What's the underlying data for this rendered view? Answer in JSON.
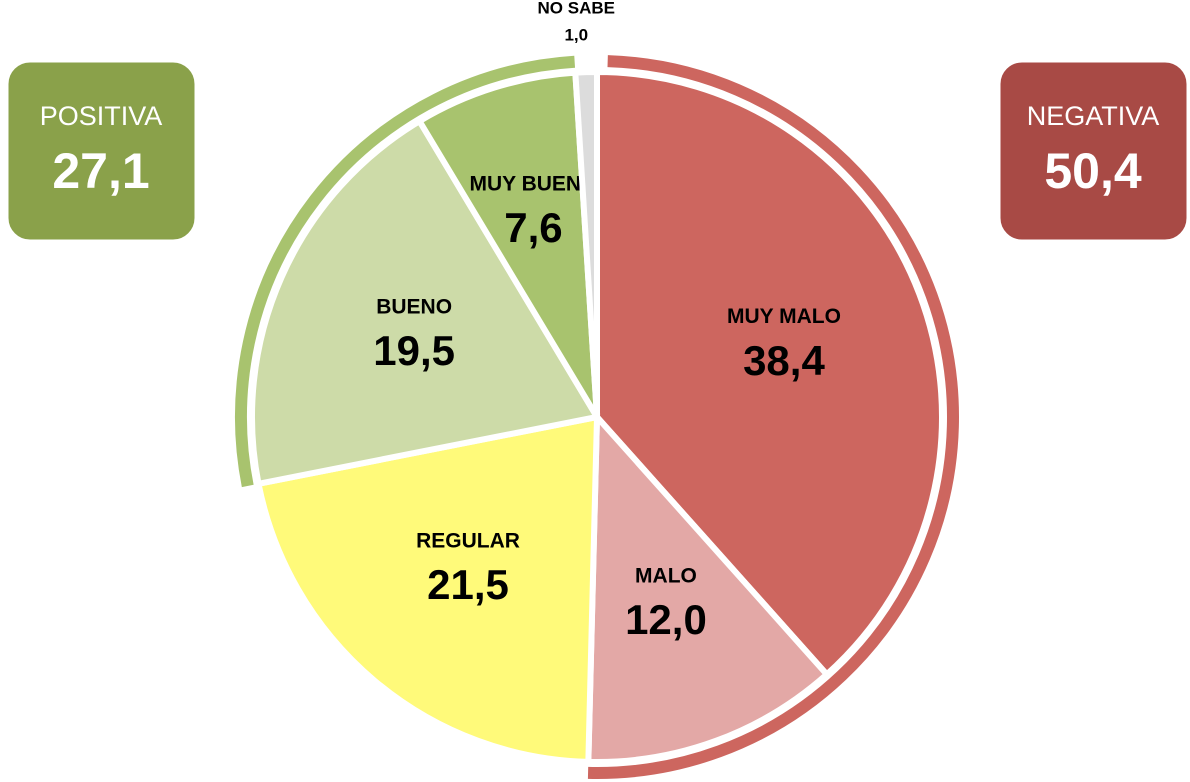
{
  "chart_data": {
    "type": "pie",
    "categories": [
      "MUY MALO",
      "MALO",
      "REGULAR",
      "BUENO",
      "MUY BUENO",
      "NO SABE"
    ],
    "values": [
      38.4,
      12.0,
      21.5,
      19.5,
      7.6,
      1.0
    ],
    "value_labels": [
      "38,4",
      "12,0",
      "21,5",
      "19,5",
      "7,6",
      "1,0"
    ],
    "colors": [
      "#cd665f",
      "#e3a8a6",
      "#fffa7a",
      "#cddba8",
      "#a8c36e",
      "#dcdcdc"
    ],
    "groups": [
      {
        "name": "POSITIVA",
        "value": 27.1,
        "label": "27,1",
        "color": "#8aa14a",
        "arc_color": "#a8c36e"
      },
      {
        "name": "NEGATIVA",
        "value": 50.4,
        "label": "50,4",
        "color": "#a84a45",
        "arc_color": "#cd665f"
      }
    ]
  }
}
